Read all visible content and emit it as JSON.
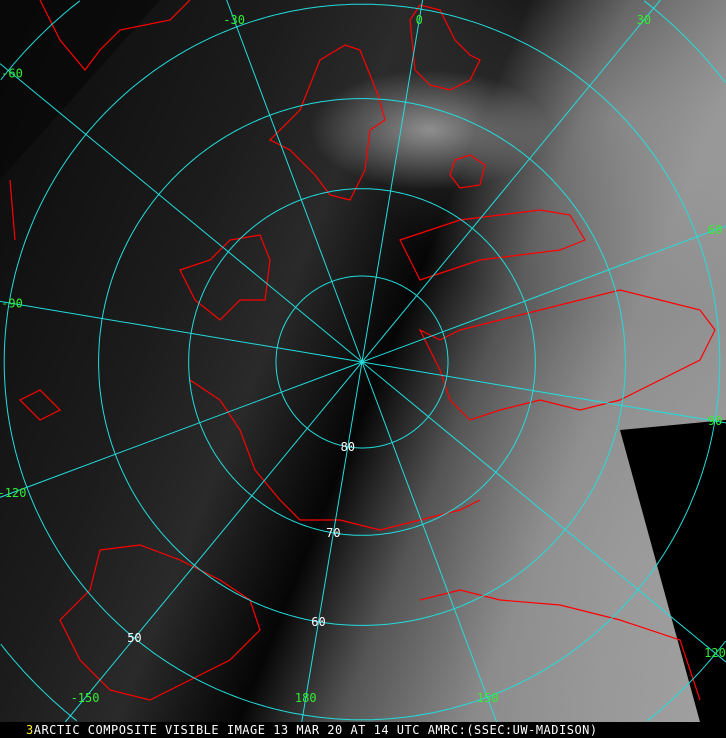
{
  "caption": {
    "frame_number": "3",
    "text": "ARCTIC COMPOSITE VISIBLE IMAGE 13 MAR 20 AT 14 UTC AMRC:(SSEC:UW-MADISON)"
  },
  "map": {
    "projection": "polar stereographic, north pole",
    "colors": {
      "grid": "#22dddd",
      "coastline": "#ff0000",
      "lon_labels": "#33ee33",
      "lat_labels": "#ffffff",
      "caption": "#ffffff",
      "frame_number": "#ffee33"
    },
    "latitudes": [
      80,
      70,
      60,
      50,
      40
    ],
    "lat_labels": [
      {
        "lat": 80,
        "text": "80"
      },
      {
        "lat": 70,
        "text": "70"
      },
      {
        "lat": 60,
        "text": "60"
      },
      {
        "lat": 50,
        "text": "50"
      }
    ],
    "longitudes": [
      -150,
      -120,
      -90,
      -60,
      -30,
      0,
      30,
      60,
      90,
      120,
      150,
      180
    ],
    "lon_labels": [
      {
        "lon": -30,
        "text": "-30"
      },
      {
        "lon": 0,
        "text": "0"
      },
      {
        "lon": 30,
        "text": "30"
      },
      {
        "lon": -60,
        "text": "-60"
      },
      {
        "lon": -90,
        "text": "-90"
      },
      {
        "lon": -120,
        "text": "-120"
      },
      {
        "lon": -150,
        "text": "-150"
      },
      {
        "lon": 180,
        "text": "180"
      },
      {
        "lon": 150,
        "text": "150"
      },
      {
        "lon": 120,
        "text": "120"
      },
      {
        "lon": 90,
        "text": "90"
      },
      {
        "lon": 60,
        "text": "60"
      }
    ]
  }
}
